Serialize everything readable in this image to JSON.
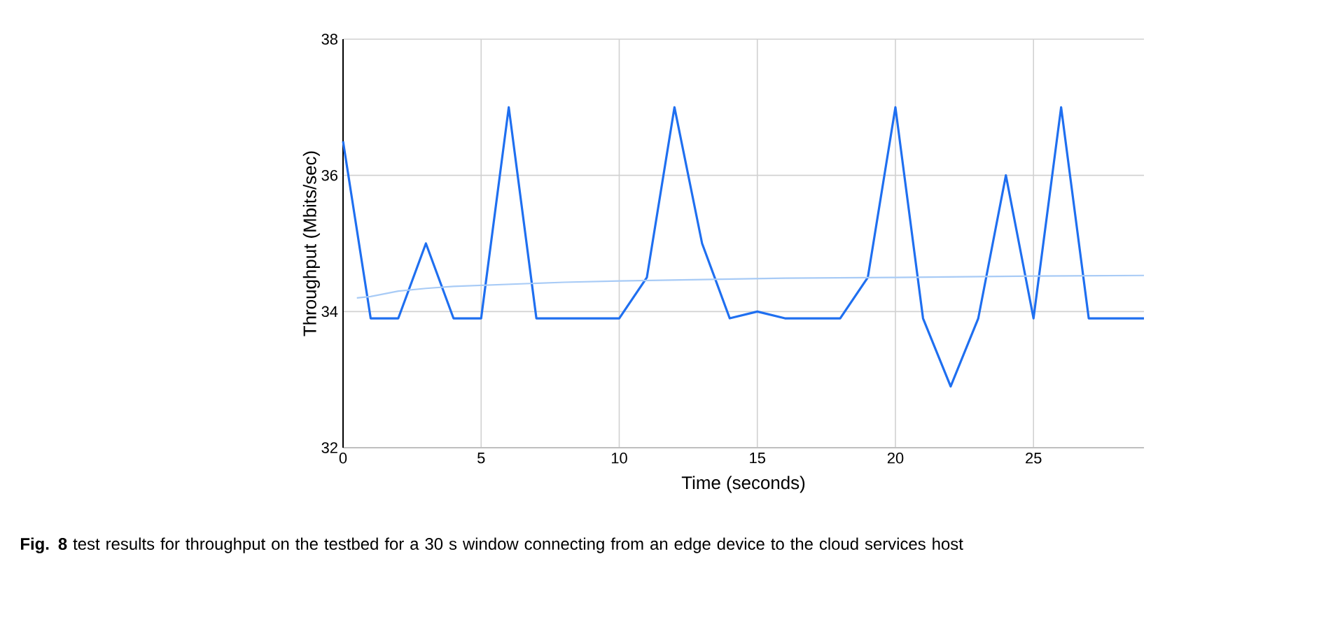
{
  "chart_data": {
    "type": "line",
    "xlabel": "Time (seconds)",
    "ylabel": "Throughput (Mbits/sec)",
    "annotations": [
      "**Fig. 8**  test results for throughput on the testbed for a 30 s window connecting from an edge device to the cloud services host"
    ],
    "series": [
      {
        "color": "#1f6ff0",
        "x": [
          0,
          1,
          2,
          3,
          4,
          5,
          6,
          7,
          8,
          9,
          10,
          11,
          12,
          13,
          14,
          15,
          16,
          17,
          18,
          19,
          20,
          21,
          22,
          23,
          24,
          25,
          26,
          27,
          28,
          29
        ],
        "values": [
          36.5,
          33.9,
          33.9,
          35,
          33.9,
          33.9,
          37,
          33.9,
          33.9,
          33.9,
          33.9,
          34.5,
          37,
          35,
          33.9,
          34,
          33.9,
          33.9,
          33.9,
          34.5,
          37,
          33.9,
          32.9,
          33.9,
          36,
          33.9,
          37,
          33.9,
          33.9,
          33.9
        ]
      },
      {
        "type": "line",
        "color": "#a8cbf6",
        "x": [
          0.5,
          1,
          2,
          3,
          4,
          6,
          8,
          10,
          13,
          16,
          20,
          25,
          29
        ],
        "values": [
          34.2,
          34.22,
          34.3,
          34.34,
          34.37,
          34.4,
          34.43,
          34.45,
          34.47,
          34.49,
          34.5,
          34.52,
          34.53
        ]
      }
    ],
    "xlim": [
      0,
      29
    ],
    "xticks": [
      0,
      5,
      10,
      15,
      20,
      25
    ],
    "ylim": [
      32,
      38
    ],
    "yticks": [
      32,
      34,
      36,
      38
    ],
    "grid": true
  }
}
